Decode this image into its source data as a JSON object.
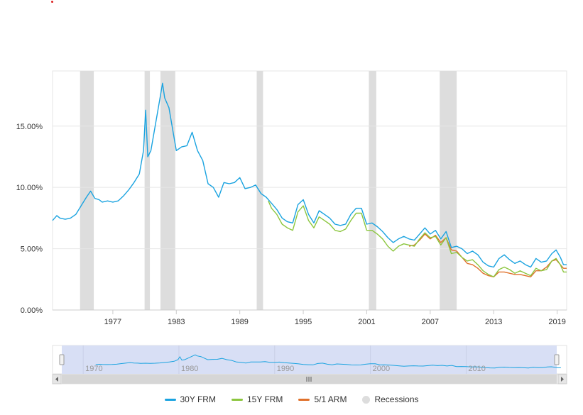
{
  "chart_data": {
    "type": "line",
    "title": "",
    "xlabel": "",
    "ylabel": "",
    "xlim": [
      1971.3,
      2019.9
    ],
    "ylim": [
      0,
      19.5
    ],
    "y_ticks": [
      {
        "value": 0,
        "label": "0.00%"
      },
      {
        "value": 5,
        "label": "5.00%"
      },
      {
        "value": 10,
        "label": "10.00%"
      },
      {
        "value": 15,
        "label": "15.00%"
      }
    ],
    "x_ticks": [
      "1977",
      "1983",
      "1989",
      "1995",
      "2001",
      "2007",
      "2013",
      "2019"
    ],
    "grid": true,
    "legend_position": "bottom-center",
    "recessions": [
      [
        1973.9,
        1975.2
      ],
      [
        1980.0,
        1980.5
      ],
      [
        1981.5,
        1982.9
      ],
      [
        1990.6,
        1991.2
      ],
      [
        2001.2,
        2001.9
      ],
      [
        2007.9,
        2009.5
      ]
    ],
    "series": [
      {
        "name": "30Y FRM",
        "color": "#1aa3e0",
        "x": [
          1971.3,
          1971.7,
          1972.0,
          1972.5,
          1973.0,
          1973.5,
          1974.0,
          1974.5,
          1974.9,
          1975.3,
          1975.7,
          1976.0,
          1976.5,
          1977.0,
          1977.5,
          1978.0,
          1978.5,
          1979.0,
          1979.5,
          1979.9,
          1980.1,
          1980.3,
          1980.6,
          1980.9,
          1981.3,
          1981.7,
          1981.9,
          1982.3,
          1982.7,
          1983.0,
          1983.5,
          1984.0,
          1984.5,
          1985.0,
          1985.5,
          1986.0,
          1986.5,
          1987.0,
          1987.5,
          1988.0,
          1988.5,
          1989.0,
          1989.5,
          1990.0,
          1990.5,
          1991.0,
          1991.5,
          1992.0,
          1992.5,
          1993.0,
          1993.5,
          1994.0,
          1994.5,
          1995.0,
          1995.5,
          1996.0,
          1996.5,
          1997.0,
          1997.5,
          1998.0,
          1998.5,
          1999.0,
          1999.5,
          2000.0,
          2000.5,
          2001.0,
          2001.5,
          2002.0,
          2002.5,
          2003.0,
          2003.5,
          2004.0,
          2004.5,
          2005.0,
          2005.5,
          2006.0,
          2006.5,
          2007.0,
          2007.5,
          2008.0,
          2008.5,
          2009.0,
          2009.5,
          2010.0,
          2010.5,
          2011.0,
          2011.5,
          2012.0,
          2012.5,
          2013.0,
          2013.5,
          2014.0,
          2014.5,
          2015.0,
          2015.5,
          2016.0,
          2016.5,
          2017.0,
          2017.5,
          2018.0,
          2018.5,
          2018.9,
          2019.3,
          2019.6,
          2019.9
        ],
        "values": [
          7.3,
          7.7,
          7.5,
          7.4,
          7.5,
          7.8,
          8.5,
          9.2,
          9.7,
          9.1,
          9.0,
          8.8,
          8.9,
          8.8,
          8.9,
          9.3,
          9.8,
          10.4,
          11.1,
          13.0,
          16.3,
          12.5,
          13.0,
          14.5,
          16.5,
          18.5,
          17.3,
          16.5,
          14.5,
          13.0,
          13.3,
          13.4,
          14.5,
          13.0,
          12.2,
          10.3,
          10.0,
          9.2,
          10.4,
          10.3,
          10.4,
          10.8,
          9.9,
          10.0,
          10.2,
          9.5,
          9.2,
          8.7,
          8.2,
          7.5,
          7.2,
          7.1,
          8.6,
          9.0,
          7.8,
          7.1,
          8.1,
          7.8,
          7.5,
          7.0,
          6.9,
          7.0,
          7.8,
          8.3,
          8.3,
          7.0,
          7.1,
          6.8,
          6.4,
          5.9,
          5.5,
          5.8,
          6.0,
          5.8,
          5.7,
          6.2,
          6.7,
          6.2,
          6.5,
          5.8,
          6.4,
          5.1,
          5.2,
          5.0,
          4.6,
          4.8,
          4.5,
          3.9,
          3.6,
          3.5,
          4.2,
          4.5,
          4.1,
          3.8,
          4.0,
          3.7,
          3.5,
          4.2,
          3.9,
          4.0,
          4.6,
          4.9,
          4.3,
          3.7,
          3.7
        ]
      },
      {
        "name": "15Y FRM",
        "color": "#8cc63f",
        "x": [
          1991.7,
          1992.0,
          1992.5,
          1993.0,
          1993.5,
          1994.0,
          1994.5,
          1995.0,
          1995.5,
          1996.0,
          1996.5,
          1997.0,
          1997.5,
          1998.0,
          1998.5,
          1999.0,
          1999.5,
          2000.0,
          2000.5,
          2001.0,
          2001.5,
          2002.0,
          2002.5,
          2003.0,
          2003.5,
          2004.0,
          2004.5,
          2005.0,
          2005.5,
          2006.0,
          2006.5,
          2007.0,
          2007.5,
          2008.0,
          2008.5,
          2009.0,
          2009.5,
          2010.0,
          2010.5,
          2011.0,
          2011.5,
          2012.0,
          2012.5,
          2013.0,
          2013.5,
          2014.0,
          2014.5,
          2015.0,
          2015.5,
          2016.0,
          2016.5,
          2017.0,
          2017.5,
          2018.0,
          2018.5,
          2018.9,
          2019.3,
          2019.6,
          2019.9
        ],
        "values": [
          8.9,
          8.3,
          7.8,
          7.0,
          6.7,
          6.5,
          8.0,
          8.5,
          7.3,
          6.7,
          7.6,
          7.3,
          7.0,
          6.5,
          6.4,
          6.6,
          7.3,
          7.9,
          7.9,
          6.5,
          6.5,
          6.2,
          5.8,
          5.2,
          4.8,
          5.2,
          5.4,
          5.3,
          5.2,
          5.8,
          6.3,
          5.9,
          6.0,
          5.3,
          5.9,
          4.6,
          4.7,
          4.3,
          4.0,
          4.1,
          3.7,
          3.2,
          2.9,
          2.7,
          3.3,
          3.5,
          3.3,
          3.0,
          3.2,
          3.0,
          2.8,
          3.4,
          3.2,
          3.3,
          4.0,
          4.2,
          3.7,
          3.1,
          3.1
        ]
      },
      {
        "name": "5/1 ARM",
        "color": "#e0712b",
        "x": [
          2005.0,
          2005.5,
          2006.0,
          2006.5,
          2007.0,
          2007.5,
          2008.0,
          2008.5,
          2009.0,
          2009.5,
          2010.0,
          2010.5,
          2011.0,
          2011.5,
          2012.0,
          2012.5,
          2013.0,
          2013.5,
          2014.0,
          2014.5,
          2015.0,
          2015.5,
          2016.0,
          2016.5,
          2017.0,
          2017.5,
          2018.0,
          2018.5,
          2018.9,
          2019.3,
          2019.6,
          2019.9
        ],
        "values": [
          5.2,
          5.3,
          5.7,
          6.2,
          5.8,
          6.1,
          5.5,
          5.9,
          4.9,
          4.8,
          4.3,
          3.8,
          3.7,
          3.4,
          3.0,
          2.8,
          2.7,
          3.1,
          3.1,
          3.0,
          2.9,
          2.9,
          2.8,
          2.7,
          3.2,
          3.2,
          3.5,
          4.0,
          4.1,
          3.7,
          3.4,
          3.4
        ]
      }
    ],
    "legend_recessions_label": "Recessions",
    "navigator": {
      "x_ticks": [
        "1970",
        "1980",
        "1990",
        "2000",
        "2010"
      ]
    }
  }
}
